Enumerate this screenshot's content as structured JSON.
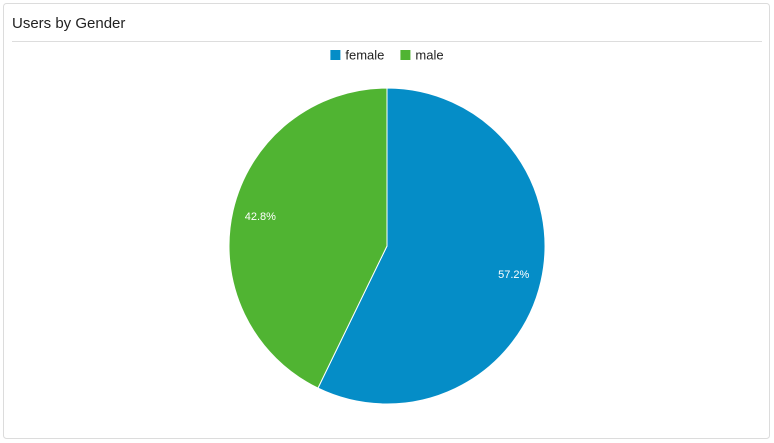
{
  "chart_data": {
    "type": "pie",
    "title": "Users by Gender",
    "categories": [
      "female",
      "male"
    ],
    "values": [
      57.2,
      42.8
    ],
    "value_labels": [
      "57.2%",
      "42.8%"
    ],
    "colors": [
      "#058dc7",
      "#50b432"
    ],
    "legend": "top"
  }
}
